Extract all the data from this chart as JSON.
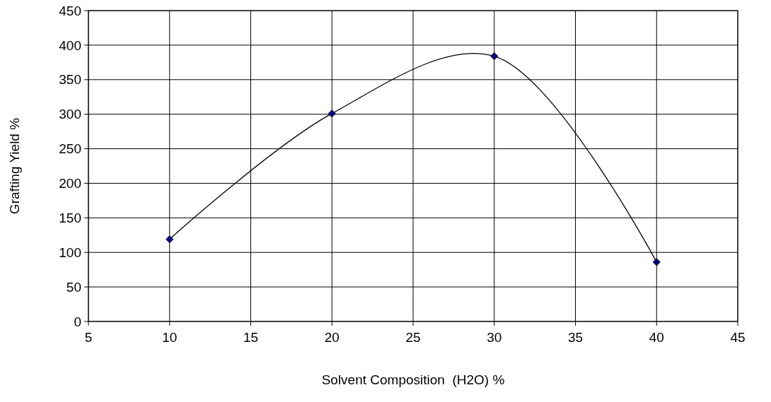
{
  "chart_data": {
    "type": "line",
    "xlabel": "Solvent Composition  (H2O) %",
    "ylabel": "Grafting Yield %",
    "x": [
      10,
      20,
      30,
      40
    ],
    "series": [
      {
        "color": "#000080",
        "values": [
          119,
          301,
          384,
          86
        ]
      }
    ],
    "xlim": [
      5,
      45
    ],
    "xticks": [
      5,
      10,
      15,
      20,
      25,
      30,
      35,
      40,
      45
    ],
    "ylim": [
      0,
      450
    ],
    "yticks": [
      0,
      50,
      100,
      150,
      200,
      250,
      300,
      350,
      400,
      450
    ],
    "grid": true,
    "marker": "diamond",
    "line_style": "solid"
  }
}
